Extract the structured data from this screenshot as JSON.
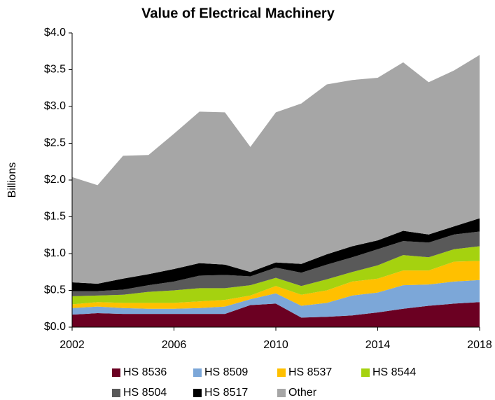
{
  "chart_data": {
    "type": "stacked_area",
    "title": "Value of Electrical Machinery",
    "y_label": "Billions",
    "x": [
      2002,
      2003,
      2004,
      2005,
      2006,
      2007,
      2008,
      2009,
      2010,
      2011,
      2012,
      2013,
      2014,
      2015,
      2016,
      2017,
      2018
    ],
    "xlim": [
      2002,
      2018
    ],
    "xticks": [
      2002,
      2006,
      2010,
      2014,
      2018
    ],
    "ylim": [
      0,
      4
    ],
    "yticks": [
      {
        "value": 0,
        "label": "$0.0"
      },
      {
        "value": 0.5,
        "label": "$0.5"
      },
      {
        "value": 1,
        "label": "$1.0"
      },
      {
        "value": 1.5,
        "label": "$1.5"
      },
      {
        "value": 2,
        "label": "$2.0"
      },
      {
        "value": 2.5,
        "label": "$2.5"
      },
      {
        "value": 3,
        "label": "$3.0"
      },
      {
        "value": 3.5,
        "label": "$3.5"
      },
      {
        "value": 4,
        "label": "$4.0"
      }
    ],
    "grid": false,
    "legend": "bottom",
    "series": [
      {
        "name": "HS 8536",
        "color": "#6b0022",
        "values": [
          0.17,
          0.19,
          0.18,
          0.18,
          0.18,
          0.18,
          0.18,
          0.3,
          0.32,
          0.13,
          0.14,
          0.16,
          0.2,
          0.25,
          0.29,
          0.32,
          0.34
        ]
      },
      {
        "name": "HS 8509",
        "color": "#7ca7d8",
        "values": [
          0.09,
          0.09,
          0.08,
          0.07,
          0.07,
          0.08,
          0.1,
          0.08,
          0.14,
          0.16,
          0.19,
          0.27,
          0.27,
          0.32,
          0.29,
          0.3,
          0.3
        ]
      },
      {
        "name": "HS 8537",
        "color": "#ffc000",
        "values": [
          0.05,
          0.06,
          0.07,
          0.08,
          0.08,
          0.09,
          0.09,
          0.05,
          0.1,
          0.15,
          0.17,
          0.19,
          0.19,
          0.2,
          0.19,
          0.27,
          0.26
        ]
      },
      {
        "name": "HS 8544",
        "color": "#a5d20f",
        "values": [
          0.11,
          0.09,
          0.11,
          0.15,
          0.17,
          0.18,
          0.16,
          0.14,
          0.11,
          0.12,
          0.15,
          0.13,
          0.18,
          0.21,
          0.18,
          0.17,
          0.2
        ]
      },
      {
        "name": "HS 8504",
        "color": "#595959",
        "values": [
          0.07,
          0.06,
          0.07,
          0.09,
          0.12,
          0.17,
          0.18,
          0.12,
          0.14,
          0.18,
          0.2,
          0.2,
          0.22,
          0.19,
          0.2,
          0.2,
          0.2
        ]
      },
      {
        "name": "HS 8517",
        "color": "#000000",
        "values": [
          0.12,
          0.1,
          0.15,
          0.15,
          0.17,
          0.17,
          0.14,
          0.06,
          0.07,
          0.12,
          0.14,
          0.15,
          0.12,
          0.14,
          0.11,
          0.11,
          0.18
        ]
      },
      {
        "name": "Other",
        "color": "#a6a6a6",
        "values": [
          1.43,
          1.34,
          1.67,
          1.62,
          1.84,
          2.06,
          2.07,
          1.7,
          2.04,
          2.18,
          2.31,
          2.26,
          2.21,
          2.29,
          2.07,
          2.12,
          2.22
        ]
      }
    ]
  }
}
